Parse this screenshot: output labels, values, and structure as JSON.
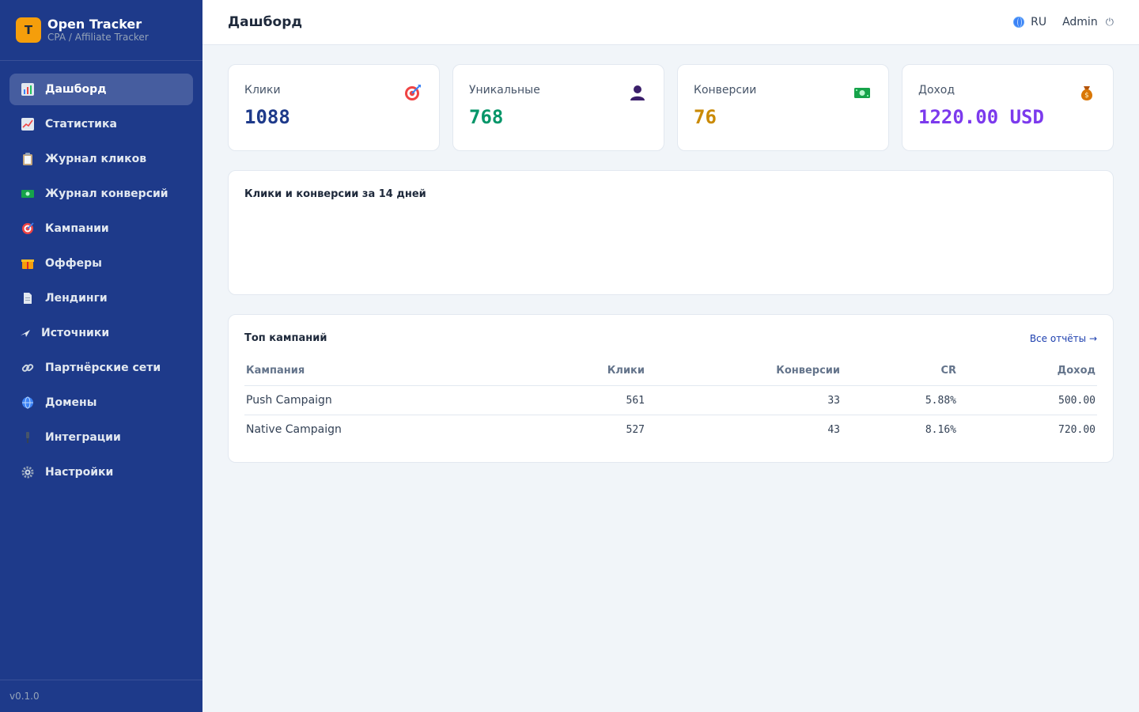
{
  "app": {
    "name": "Open Tracker",
    "subtitle": "CPA / Affiliate Tracker",
    "logo_letter": "T",
    "version": "v0.1.0"
  },
  "colors": {
    "sidebar": "#1e3a8a",
    "logo": "#f59e0b",
    "clicks": "#1e3a8a",
    "unique": "#059669",
    "conversions": "#ca8a04",
    "revenue": "#7c3aed"
  },
  "sidebar": {
    "items": [
      {
        "label": "Дашборд",
        "icon": "bar-chart-icon",
        "active": true
      },
      {
        "label": "Статистика",
        "icon": "trend-chart-icon"
      },
      {
        "label": "Журнал кликов",
        "icon": "clipboard-icon"
      },
      {
        "label": "Журнал конверсий",
        "icon": "money-icon"
      },
      {
        "label": "Кампании",
        "icon": "target-icon"
      },
      {
        "label": "Офферы",
        "icon": "gift-icon"
      },
      {
        "label": "Лендинги",
        "icon": "page-icon"
      },
      {
        "label": "Источники",
        "icon": "plane-icon"
      },
      {
        "label": "Партнёрские сети",
        "icon": "link-icon"
      },
      {
        "label": "Домены",
        "icon": "globe-icon"
      },
      {
        "label": "Интеграции",
        "icon": "plug-icon"
      },
      {
        "label": "Настройки",
        "icon": "gear-icon"
      }
    ]
  },
  "header": {
    "title": "Дашборд",
    "language": "RU",
    "user": "Admin"
  },
  "stats": [
    {
      "label": "Клики",
      "value": "1088",
      "icon": "target-icon"
    },
    {
      "label": "Уникальные",
      "value": "768",
      "icon": "user-icon"
    },
    {
      "label": "Конверсии",
      "value": "76",
      "icon": "money-icon"
    },
    {
      "label": "Доход",
      "value": "1220.00 USD",
      "icon": "money-bag-icon"
    }
  ],
  "chart": {
    "title": "Клики и конверсии за 14 дней"
  },
  "top_campaigns": {
    "title": "Топ кампаний",
    "link": "Все отчёты →",
    "columns": [
      "Кампания",
      "Клики",
      "Конверсии",
      "CR",
      "Доход"
    ],
    "rows": [
      [
        "Push Campaign",
        "561",
        "33",
        "5.88%",
        "500.00"
      ],
      [
        "Native Campaign",
        "527",
        "43",
        "8.16%",
        "720.00"
      ]
    ]
  }
}
